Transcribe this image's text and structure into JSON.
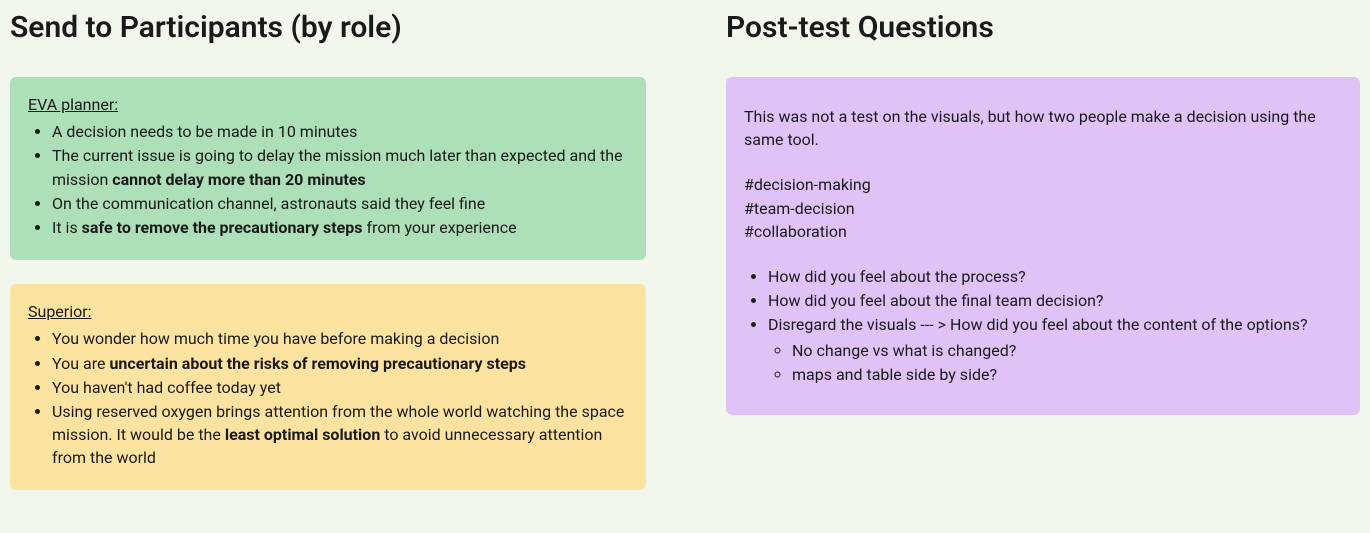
{
  "left": {
    "heading": "Send to Participants (by role)",
    "cards": [
      {
        "bg_color": "#addfb8",
        "role_label": "EVA planner: ",
        "bullets": [
          {
            "parts": [
              "A decision needs to be made in 10 minutes"
            ]
          },
          {
            "parts": [
              "The current issue is going to delay the mission much later than expected and the mission ",
              {
                "bold": "cannot delay more than 20 minutes"
              }
            ]
          },
          {
            "parts": [
              "On the communication channel, astronauts said they feel fine"
            ]
          },
          {
            "parts": [
              "It is ",
              {
                "bold": "safe to remove the precautionary steps"
              },
              " from your experience"
            ]
          }
        ]
      },
      {
        "bg_color": "#fde3a0",
        "role_label": "Superior: ",
        "bullets": [
          {
            "parts": [
              "You wonder how much time you have before making a decision"
            ]
          },
          {
            "parts": [
              "You are ",
              {
                "bold": "uncertain about the risks of removing precautionary steps"
              }
            ]
          },
          {
            "parts": [
              "You haven't had coffee today yet"
            ]
          },
          {
            "parts": [
              "Using reserved oxygen brings attention from the whole world watching the space mission. It would be the ",
              {
                "bold": "least optimal solution"
              },
              " to avoid unnecessary attention from the world"
            ]
          }
        ]
      }
    ]
  },
  "right": {
    "heading": "Post-test Questions",
    "card": {
      "bg_color": "#dfc3f7",
      "intro": "This was not a test on the visuals, but how two people make a decision using the same tool.",
      "tags": [
        "#decision-making",
        "#team-decision",
        "#collaboration"
      ],
      "bullets": [
        {
          "text": "How did you feel about the process?"
        },
        {
          "text": "How did you feel about the final team decision?"
        },
        {
          "text": "Disregard the visuals --- > How did you feel about the content of the options?",
          "sub": [
            "No change vs what is changed?",
            "maps and table side by side?"
          ]
        }
      ]
    }
  },
  "styles": {
    "background_color": "#f2f7ee",
    "heading_fontsize": 30,
    "body_fontsize": 16,
    "text_color": "#1a1a1a"
  }
}
